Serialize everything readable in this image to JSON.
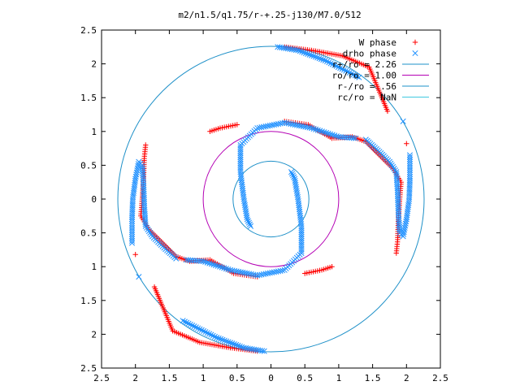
{
  "chart_data": {
    "type": "scatter",
    "title": "m2/n1.5/q1.75/r-+.25-j130/M7.0/512",
    "xlabel": "",
    "ylabel": "",
    "xlim": [
      -2.5,
      2.5
    ],
    "ylim": [
      -2.5,
      2.5
    ],
    "x_ticks": [
      "2.5",
      "2",
      "1.5",
      "1",
      "0.5",
      "0",
      "0.5",
      "1",
      "1.5",
      "2",
      "2.5"
    ],
    "y_ticks": [
      "2.5",
      "2",
      "1.5",
      "1",
      "0.5",
      "0",
      "0.5",
      "1",
      "1.5",
      "2",
      "2.5"
    ],
    "grid": false,
    "legend_position": "top-right",
    "colors": {
      "w_phase": "#ff0000",
      "drho_phase": "#1e90ff",
      "r_plus": "#1e90c8",
      "r_o": "#b400b4",
      "r_minus": "#1e90c8",
      "r_c": "#40c8e0"
    },
    "legend": [
      {
        "label": "W phase",
        "marker": "plus",
        "color": "#ff0000"
      },
      {
        "label": "drho phase",
        "marker": "x",
        "color": "#1e90ff"
      },
      {
        "label": "r+/ro = 2.26",
        "marker": "line",
        "color": "#1e90c8"
      },
      {
        "label": "ro/ro = 1.00",
        "marker": "line",
        "color": "#b400b4"
      },
      {
        "label": "r-/ro = .56",
        "marker": "line",
        "color": "#1e90c8"
      },
      {
        "label": "rc/ro = NaN",
        "marker": "line",
        "color": "#40c8e0"
      }
    ],
    "circles": [
      {
        "name": "r+/ro",
        "radius": 2.26,
        "color": "#1e90c8"
      },
      {
        "name": "ro/ro",
        "radius": 1.0,
        "color": "#b400b4"
      },
      {
        "name": "r-/ro",
        "radius": 0.56,
        "color": "#1e90c8"
      }
    ],
    "series": [
      {
        "name": "W phase",
        "marker": "plus",
        "color": "#ff0000",
        "segments": [
          [
            [
              -1.85,
              0.8
            ],
            [
              -1.87,
              0.6
            ],
            [
              -1.88,
              0.3
            ],
            [
              -1.9,
              0.0
            ],
            [
              -1.92,
              -0.25
            ],
            [
              -1.8,
              -0.45
            ],
            [
              -1.6,
              -0.65
            ],
            [
              -1.4,
              -0.85
            ],
            [
              -1.2,
              -0.92
            ],
            [
              -0.9,
              -0.9
            ],
            [
              -0.55,
              -1.1
            ],
            [
              -0.2,
              -1.15
            ]
          ],
          [
            [
              0.2,
              1.15
            ],
            [
              0.55,
              1.1
            ],
            [
              0.9,
              0.9
            ],
            [
              1.2,
              0.92
            ],
            [
              1.4,
              0.85
            ],
            [
              1.6,
              0.65
            ],
            [
              1.8,
              0.45
            ],
            [
              1.92,
              0.25
            ],
            [
              1.9,
              0.0
            ],
            [
              1.88,
              -0.3
            ],
            [
              1.87,
              -0.6
            ],
            [
              1.85,
              -0.8
            ]
          ],
          [
            [
              -0.9,
              1.0
            ],
            [
              -0.75,
              1.05
            ],
            [
              -0.5,
              1.1
            ]
          ],
          [
            [
              0.9,
              -1.0
            ],
            [
              0.75,
              -1.05
            ],
            [
              0.5,
              -1.1
            ]
          ],
          [
            [
              -1.72,
              -1.3
            ],
            [
              -1.45,
              -1.95
            ],
            [
              -1.05,
              -2.12
            ],
            [
              -0.6,
              -2.2
            ],
            [
              -0.2,
              -2.25
            ]
          ],
          [
            [
              1.72,
              1.3
            ],
            [
              1.45,
              1.95
            ],
            [
              1.05,
              2.12
            ],
            [
              0.6,
              2.2
            ],
            [
              0.2,
              2.25
            ]
          ],
          [
            [
              -2.0,
              -0.82
            ],
            [
              2.0,
              0.82
            ]
          ]
        ]
      },
      {
        "name": "drho phase",
        "marker": "x",
        "color": "#1e90ff",
        "segments": [
          [
            [
              -2.05,
              -0.65
            ],
            [
              -2.05,
              -0.3
            ],
            [
              -2.04,
              0.0
            ],
            [
              -2.0,
              0.3
            ],
            [
              -1.95,
              0.55
            ],
            [
              -1.9,
              0.5
            ],
            [
              -1.88,
              0.2
            ],
            [
              -1.87,
              -0.1
            ],
            [
              -1.85,
              -0.4
            ],
            [
              -1.75,
              -0.55
            ],
            [
              -1.6,
              -0.7
            ],
            [
              -1.4,
              -0.88
            ]
          ],
          [
            [
              2.05,
              0.65
            ],
            [
              2.05,
              0.3
            ],
            [
              2.04,
              0.0
            ],
            [
              2.0,
              -0.3
            ],
            [
              1.95,
              -0.55
            ],
            [
              1.9,
              -0.5
            ],
            [
              1.88,
              -0.2
            ],
            [
              1.87,
              0.1
            ],
            [
              1.85,
              0.4
            ],
            [
              1.75,
              0.55
            ],
            [
              1.6,
              0.7
            ],
            [
              1.4,
              0.88
            ]
          ],
          [
            [
              -1.25,
              -0.9
            ],
            [
              -1.0,
              -0.92
            ],
            [
              -0.6,
              -1.05
            ],
            [
              -0.2,
              -1.13
            ],
            [
              0.2,
              -1.05
            ],
            [
              0.45,
              -0.8
            ],
            [
              0.45,
              -0.4
            ],
            [
              0.4,
              0.0
            ],
            [
              0.35,
              0.3
            ],
            [
              0.3,
              0.4
            ]
          ],
          [
            [
              1.25,
              0.9
            ],
            [
              1.0,
              0.92
            ],
            [
              0.6,
              1.05
            ],
            [
              0.2,
              1.13
            ],
            [
              -0.2,
              1.05
            ],
            [
              -0.45,
              0.8
            ],
            [
              -0.45,
              0.4
            ],
            [
              -0.4,
              0.0
            ],
            [
              -0.35,
              -0.3
            ],
            [
              -0.3,
              -0.4
            ]
          ],
          [
            [
              -1.3,
              -1.8
            ],
            [
              -0.8,
              -2.05
            ],
            [
              -0.4,
              -2.2
            ],
            [
              -0.1,
              -2.25
            ]
          ],
          [
            [
              1.3,
              1.8
            ],
            [
              0.8,
              2.05
            ],
            [
              0.4,
              2.2
            ],
            [
              0.1,
              2.25
            ]
          ],
          [
            [
              -1.95,
              -1.15
            ],
            [
              1.95,
              1.15
            ]
          ]
        ]
      }
    ]
  }
}
